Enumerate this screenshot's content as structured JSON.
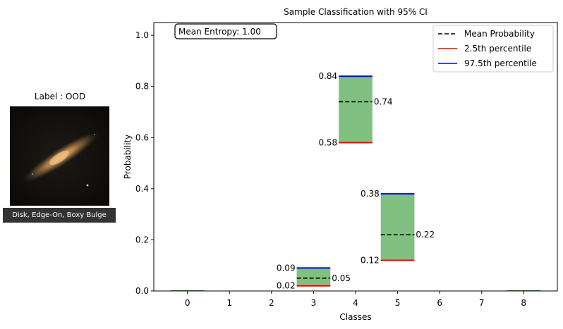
{
  "thumbnail": {
    "title": "Label : OOD",
    "caption": "Disk, Edge-On, Boxy Bulge",
    "icon": "galaxy-image"
  },
  "chart_data": {
    "type": "bar",
    "title": "Sample Classification with 95% CI",
    "xlabel": "Classes",
    "ylabel": "Probability",
    "ylim": [
      0.0,
      1.05
    ],
    "xlim": [
      -0.8,
      8.8
    ],
    "yticks": [
      "0.0",
      "0.2",
      "0.4",
      "0.6",
      "0.8",
      "1.0"
    ],
    "categories": [
      "0",
      "1",
      "2",
      "3",
      "4",
      "5",
      "6",
      "7",
      "8"
    ],
    "mean_entropy_label": "Mean Entropy: 1.00",
    "legend_position": "upper right",
    "legend": [
      {
        "label": "Mean Probability",
        "style": "dashed",
        "color": "#000000"
      },
      {
        "label": "2.5th percentile",
        "style": "solid",
        "color": "#ff0000"
      },
      {
        "label": "97.5th percentile",
        "style": "solid",
        "color": "#0000ff"
      }
    ],
    "series": [
      {
        "name": "2.5th percentile",
        "values": [
          0.0,
          0.0,
          0.0,
          0.02,
          0.58,
          0.12,
          0.0,
          0.0,
          0.0
        ]
      },
      {
        "name": "Mean Probability",
        "values": [
          0.0,
          0.0,
          0.0,
          0.05,
          0.74,
          0.22,
          0.0,
          0.0,
          0.0
        ]
      },
      {
        "name": "97.5th percentile",
        "values": [
          0.0,
          0.0,
          0.0,
          0.09,
          0.84,
          0.38,
          0.0,
          0.0,
          0.0
        ]
      }
    ],
    "labels": [
      null,
      null,
      null,
      {
        "lower": "0.02",
        "mean": "0.05",
        "upper": "0.09"
      },
      {
        "lower": "0.58",
        "mean": "0.74",
        "upper": "0.84"
      },
      {
        "lower": "0.12",
        "mean": "0.22",
        "upper": "0.38"
      },
      null,
      null,
      null
    ],
    "colors": {
      "interval_fill": "#80c080",
      "tiny_interval": "#4a9a4a",
      "mean": "#000000",
      "lower": "#ff0000",
      "upper": "#0000ff"
    }
  }
}
